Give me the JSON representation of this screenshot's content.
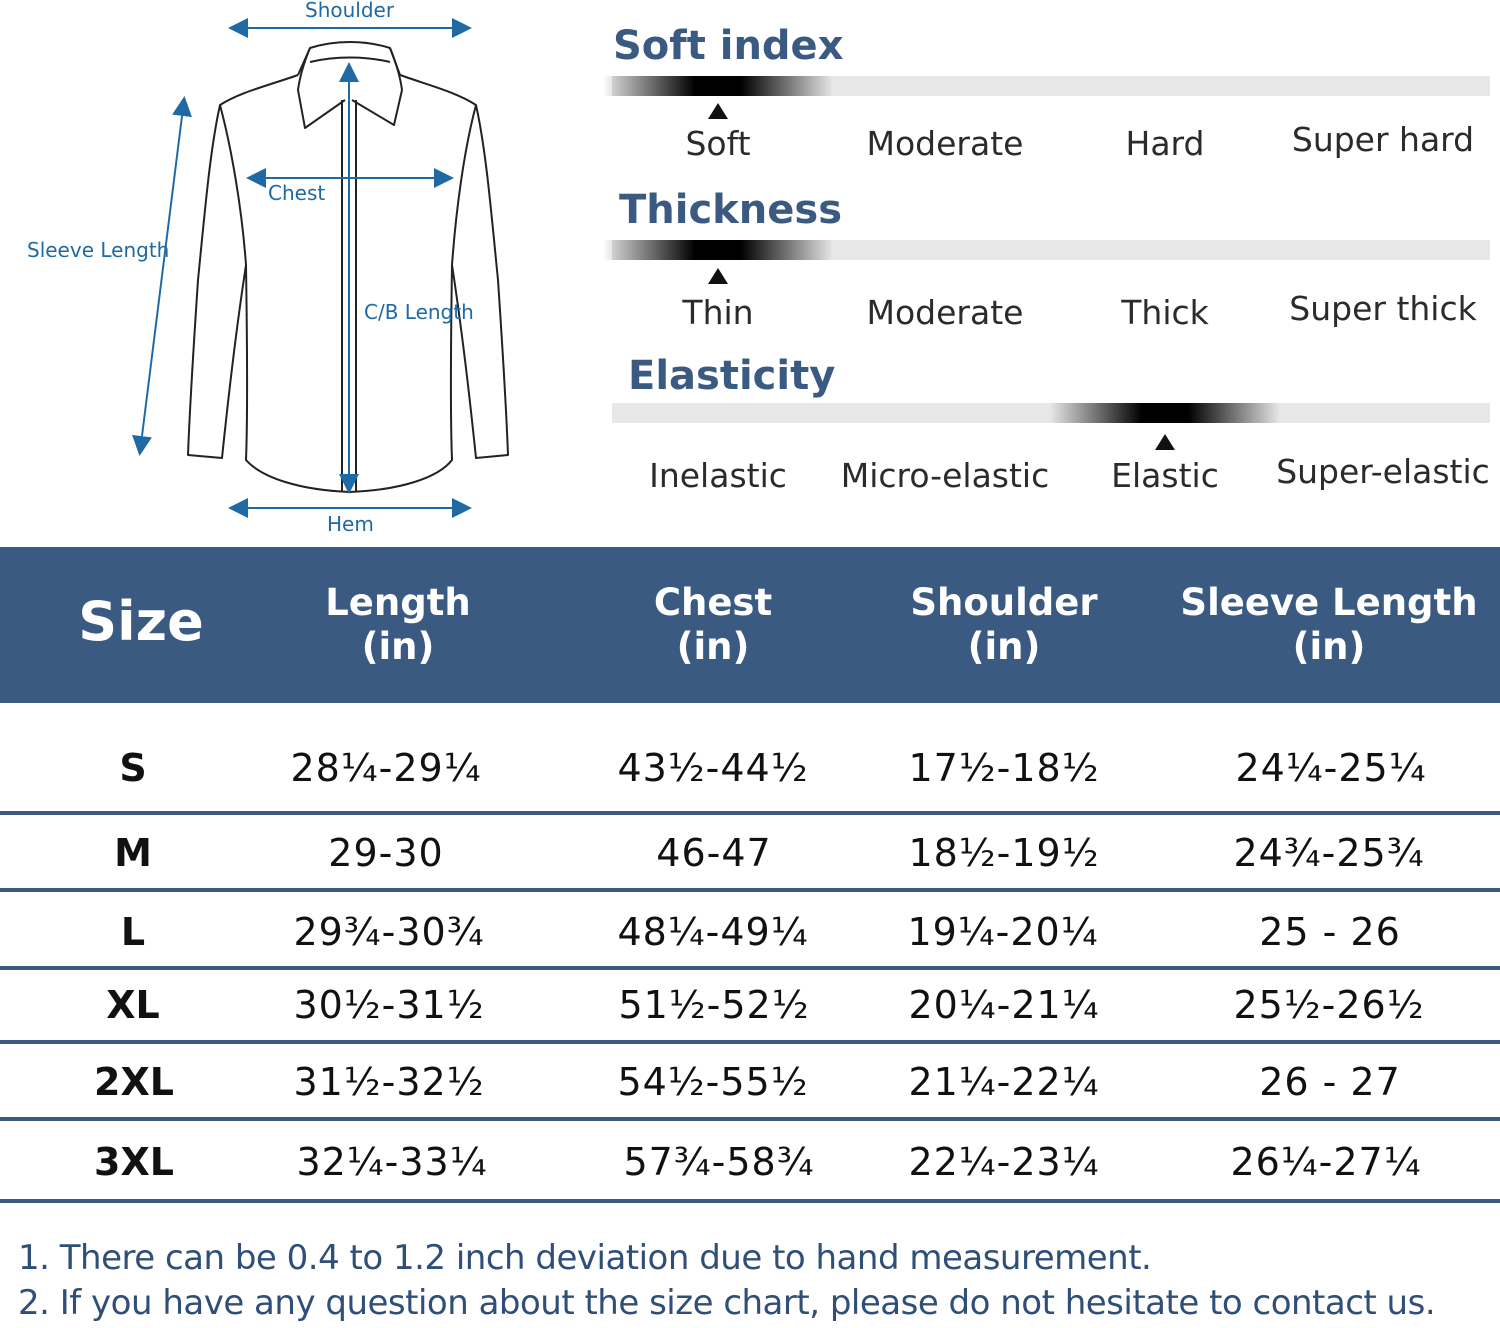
{
  "diagram": {
    "labels": {
      "shoulder": "Shoulder",
      "chest": "Chest",
      "sleeve_length": "Sleeve Length",
      "cb_length": "C/B Length",
      "hem": "Hem"
    },
    "accent_color": "#1f6aa5"
  },
  "scales": [
    {
      "title": "Soft index",
      "levels": [
        "Soft",
        "Moderate",
        "Hard",
        "Super hard"
      ],
      "selected_index": 0
    },
    {
      "title": "Thickness",
      "levels": [
        "Thin",
        "Moderate",
        "Thick",
        "Super thick"
      ],
      "selected_index": 0
    },
    {
      "title": "Elasticity",
      "levels": [
        "Inelastic",
        "Micro-elastic",
        "Elastic",
        "Super-elastic"
      ],
      "selected_index": 2
    }
  ],
  "size_table": {
    "header_color": "#3a5a82",
    "columns": [
      {
        "name": "Size",
        "unit": ""
      },
      {
        "name": "Length",
        "unit": "(in)"
      },
      {
        "name": "Chest",
        "unit": "(in)"
      },
      {
        "name": "Shoulder",
        "unit": "(in)"
      },
      {
        "name": "Sleeve Length",
        "unit": "(in)"
      }
    ],
    "rows": [
      [
        "S",
        "28¼-29¼",
        "43½-44½",
        "17½-18½",
        "24¼-25¼"
      ],
      [
        "M",
        "29-30",
        "46-47",
        "18½-19½",
        "24¾-25¾"
      ],
      [
        "L",
        "29¾-30¾",
        "48¼-49¼",
        "19¼-20¼",
        "25 - 26"
      ],
      [
        "XL",
        "30½-31½",
        "51½-52½",
        "20¼-21¼",
        "25½-26½"
      ],
      [
        "2XL",
        "31½-32½",
        "54½-55½",
        "21¼-22¼",
        "26 - 27"
      ],
      [
        "3XL",
        "32¼-33¼",
        "57¾-58¾",
        "22¼-23¼",
        "26¼-27¼"
      ]
    ]
  },
  "notes": [
    "1. There can be 0.4 to 1.2 inch deviation due to hand measurement.",
    "2. If you have any question about the size chart, please do not hesitate to contact us."
  ],
  "note_color": "#2f4f78"
}
